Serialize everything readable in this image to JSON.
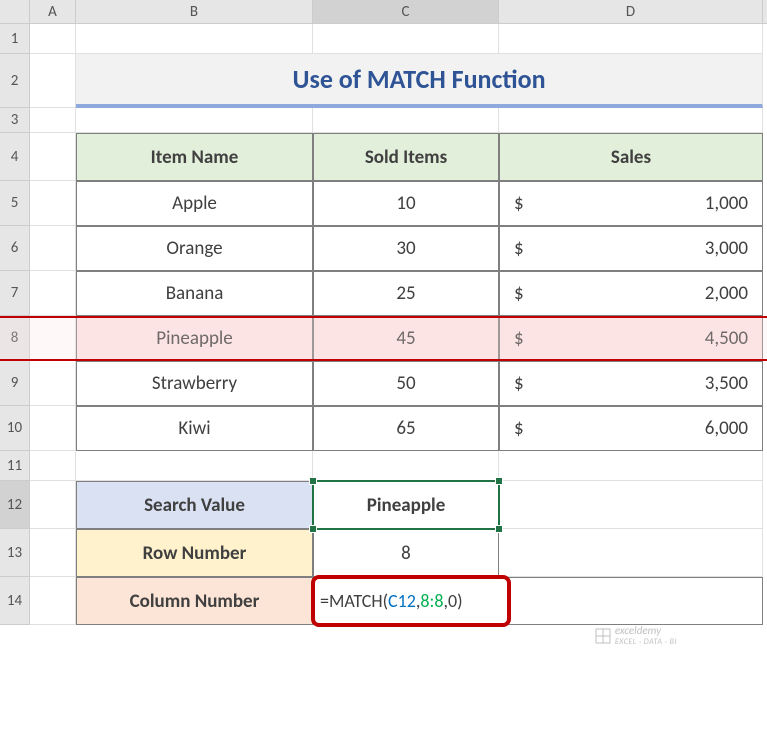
{
  "columns": {
    "headers": [
      "A",
      "B",
      "C",
      "D"
    ],
    "widths": [
      46,
      237,
      186,
      264
    ]
  },
  "rows": {
    "headers": [
      "1",
      "2",
      "3",
      "4",
      "5",
      "6",
      "7",
      "8",
      "9",
      "10",
      "11",
      "12",
      "13",
      "14"
    ],
    "heights": [
      30,
      54,
      25,
      48,
      45,
      45,
      45,
      45,
      45,
      45,
      30,
      48,
      48,
      48
    ]
  },
  "title": "Use of MATCH Function",
  "table": {
    "headers": [
      "Item Name",
      "Sold Items",
      "Sales"
    ],
    "rows": [
      {
        "name": "Apple",
        "sold": "10",
        "currency": "$",
        "sales": "1,000"
      },
      {
        "name": "Orange",
        "sold": "30",
        "currency": "$",
        "sales": "3,000"
      },
      {
        "name": "Banana",
        "sold": "25",
        "currency": "$",
        "sales": "2,000"
      },
      {
        "name": "Pineapple",
        "sold": "45",
        "currency": "$",
        "sales": "4,500"
      },
      {
        "name": "Strawberry",
        "sold": "50",
        "currency": "$",
        "sales": "3,500"
      },
      {
        "name": "Kiwi",
        "sold": "65",
        "currency": "$",
        "sales": "6,000"
      }
    ],
    "highlighted_row_index": 3,
    "header_bg": "#e2efda",
    "highlight_bg": "#fce4e4",
    "border_color": "#7f7f7f"
  },
  "search": {
    "label": "Search Value",
    "value": "Pineapple",
    "label_bg": "#d9e1f2"
  },
  "rownum": {
    "label": "Row Number",
    "value": "8",
    "label_bg": "#fff2cc"
  },
  "colnum": {
    "label": "Column Number",
    "formula_prefix": "=MATCH(",
    "formula_ref1": "C12",
    "formula_sep1": ",",
    "formula_ref2": "8:8",
    "formula_sep2": ",",
    "formula_arg3": "0",
    "formula_suffix": ")",
    "label_bg": "#fce4d6"
  },
  "colors": {
    "title_color": "#2f5496",
    "title_bg": "#f2f2f2",
    "title_underline": "#8ea9db",
    "selection_green": "#217346",
    "red_box": "#c00000",
    "formula_ref1": "#0070c0",
    "formula_ref2": "#00b050"
  },
  "watermark": {
    "brand": "exceldemy",
    "tag": "EXCEL · DATA · BI"
  }
}
